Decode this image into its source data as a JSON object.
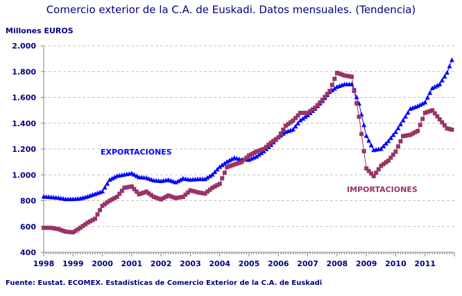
{
  "chart_data": {
    "type": "line",
    "title": "Comercio exterior de la C.A. de Euskadi. Datos mensuales. (Tendencia)",
    "ylabel": "Millones EUROS",
    "xlabel": "",
    "source": "Fuente: Eustat. ECOMEX. Estadísticas de Comercio Exterior de la C.A. de Euskadi",
    "ylim": [
      400,
      2000
    ],
    "xlim": [
      1998,
      2012
    ],
    "yticks": [
      400,
      600,
      800,
      1000,
      1200,
      1400,
      1600,
      1800,
      2000
    ],
    "ytick_labels": [
      "400",
      "600",
      "800",
      "1.000",
      "1.200",
      "1.400",
      "1.600",
      "1.800",
      "2.000"
    ],
    "xtick_labels": [
      "1998",
      "1999",
      "2000",
      "2001",
      "2002",
      "2003",
      "2004",
      "2005",
      "2006",
      "2007",
      "2008",
      "2009",
      "2010",
      "2011"
    ],
    "grid": "horizontal dashed",
    "x": [
      1998,
      1998.25,
      1998.5,
      1998.75,
      1999,
      1999.25,
      1999.5,
      1999.75,
      2000,
      2000.25,
      2000.5,
      2000.75,
      2001,
      2001.25,
      2001.5,
      2001.75,
      2002,
      2002.25,
      2002.5,
      2002.75,
      2003,
      2003.25,
      2003.5,
      2003.75,
      2004,
      2004.25,
      2004.5,
      2004.75,
      2005,
      2005.25,
      2005.5,
      2005.75,
      2006,
      2006.25,
      2006.5,
      2006.75,
      2007,
      2007.25,
      2007.5,
      2007.75,
      2008,
      2008.25,
      2008.5,
      2008.75,
      2009,
      2009.25,
      2009.5,
      2009.75,
      2010,
      2010.25,
      2010.5,
      2010.75,
      2011,
      2011.25,
      2011.5,
      2011.75,
      2011.92
    ],
    "series": [
      {
        "name": "EXPORTACIONES",
        "color": "#0000ff",
        "marker": "triangle",
        "values": [
          830,
          825,
          820,
          810,
          810,
          815,
          830,
          850,
          870,
          960,
          990,
          1000,
          1010,
          980,
          975,
          955,
          950,
          960,
          940,
          970,
          960,
          965,
          965,
          1000,
          1060,
          1100,
          1130,
          1115,
          1115,
          1140,
          1180,
          1230,
          1290,
          1330,
          1350,
          1420,
          1460,
          1510,
          1570,
          1640,
          1680,
          1700,
          1700,
          1550,
          1300,
          1190,
          1200,
          1260,
          1330,
          1420,
          1510,
          1530,
          1560,
          1670,
          1700,
          1790,
          1890
        ]
      },
      {
        "name": "IMPORTACIONES",
        "color": "#993366",
        "marker": "square",
        "values": [
          590,
          590,
          580,
          560,
          555,
          590,
          630,
          660,
          760,
          800,
          830,
          900,
          910,
          850,
          870,
          830,
          810,
          840,
          820,
          830,
          880,
          865,
          855,
          900,
          930,
          1060,
          1080,
          1100,
          1150,
          1180,
          1200,
          1250,
          1290,
          1380,
          1420,
          1480,
          1480,
          1520,
          1580,
          1650,
          1790,
          1770,
          1760,
          1450,
          1050,
          990,
          1070,
          1110,
          1180,
          1300,
          1310,
          1340,
          1480,
          1500,
          1430,
          1360,
          1350
        ]
      }
    ]
  }
}
